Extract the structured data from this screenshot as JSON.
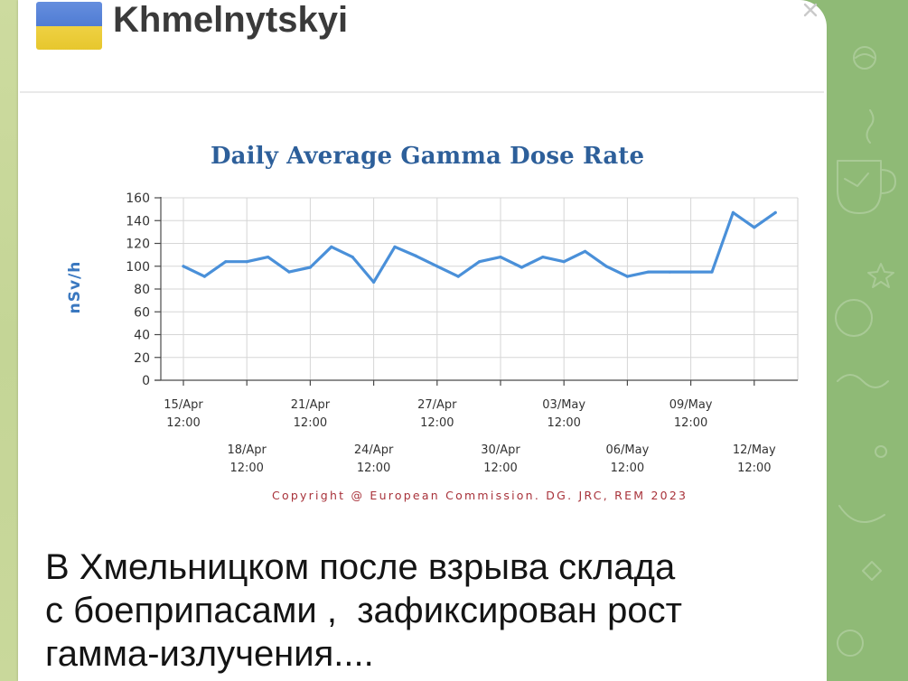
{
  "theme": {
    "background": "#8fba76",
    "card": "#ffffff",
    "text": "#141414"
  },
  "header": {
    "title": "Khmelnytskyi",
    "flag_icon": "ukraine-flag-icon",
    "flag_colors": {
      "top": "#3f72d6",
      "bottom": "#f5d330"
    },
    "close_icon": "close-icon"
  },
  "chart_data": {
    "type": "line",
    "title": "Daily Average Gamma Dose Rate",
    "xlabel": "",
    "ylabel": "nSv/h",
    "ylim": [
      0,
      160
    ],
    "yticks": [
      0,
      20,
      40,
      60,
      80,
      100,
      120,
      140,
      160
    ],
    "xticks": [
      {
        "date": "15/Apr",
        "time": "12:00"
      },
      {
        "date": "18/Apr",
        "time": "12:00"
      },
      {
        "date": "21/Apr",
        "time": "12:00"
      },
      {
        "date": "24/Apr",
        "time": "12:00"
      },
      {
        "date": "27/Apr",
        "time": "12:00"
      },
      {
        "date": "30/Apr",
        "time": "12:00"
      },
      {
        "date": "03/May",
        "time": "12:00"
      },
      {
        "date": "06/May",
        "time": "12:00"
      },
      {
        "date": "09/May",
        "time": "12:00"
      },
      {
        "date": "12/May",
        "time": "12:00"
      }
    ],
    "x": [
      "15/Apr 12:00",
      "16/Apr 12:00",
      "17/Apr 12:00",
      "18/Apr 12:00",
      "19/Apr 12:00",
      "20/Apr 12:00",
      "21/Apr 12:00",
      "22/Apr 12:00",
      "23/Apr 12:00",
      "24/Apr 12:00",
      "25/Apr 12:00",
      "26/Apr 12:00",
      "27/Apr 12:00",
      "28/Apr 12:00",
      "29/Apr 12:00",
      "30/Apr 12:00",
      "01/May 12:00",
      "02/May 12:00",
      "03/May 12:00",
      "04/May 12:00",
      "05/May 12:00",
      "06/May 12:00",
      "07/May 12:00",
      "08/May 12:00",
      "09/May 12:00",
      "10/May 12:00",
      "11/May 12:00",
      "12/May 12:00",
      "13/May 12:00"
    ],
    "series": [
      {
        "color": "#4a90d9",
        "values": [
          100,
          91,
          104,
          104,
          108,
          95,
          99,
          117,
          108,
          86,
          117,
          109,
          100,
          91,
          104,
          108,
          99,
          108,
          104,
          113,
          100,
          91,
          95,
          95,
          95,
          95,
          147,
          134,
          147
        ]
      }
    ],
    "grid": true,
    "legend": "none",
    "source_note": "Copyright @ European Commission. DG. JRC, REM 2023",
    "colors": {
      "title": "#2d5f9a",
      "ylabel": "#3a78c0",
      "source_note": "#a8323a"
    }
  },
  "message": {
    "lines": [
      "В Хмельницком после взрыва склада",
      "с боеприпасами ,  зафиксирован рост",
      "гамма-излучения...."
    ]
  }
}
